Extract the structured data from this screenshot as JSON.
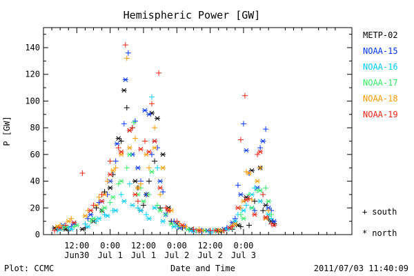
{
  "chart_data": {
    "type": "scatter",
    "title": "Hemispheric Power [GW]",
    "ylabel": "P [GW]",
    "xlabel": "Date and Time",
    "ylim": [
      0,
      155
    ],
    "xlim_hours": [
      -12,
      99
    ],
    "yticks": [
      "0",
      "20",
      "40",
      "60",
      "80",
      "100",
      "120",
      "140"
    ],
    "xticks": [
      {
        "top": "12:00",
        "bottom": "Jun30",
        "hour": 0
      },
      {
        "top": "0:00",
        "bottom": "Jul 1",
        "hour": 12
      },
      {
        "top": "12:00",
        "bottom": "Jul 1",
        "hour": 24
      },
      {
        "top": "0:00",
        "bottom": "Jul 2",
        "hour": 36
      },
      {
        "top": "12:00",
        "bottom": "Jul 2",
        "hour": 48
      },
      {
        "top": "0:00",
        "bottom": "Jul 3",
        "hour": 60
      }
    ],
    "grid": false,
    "legend_position": "right",
    "marker_legend": [
      {
        "symbol": "+",
        "label": "south"
      },
      {
        "symbol": "*",
        "label": "north"
      }
    ],
    "series": [
      {
        "name": "METP-02",
        "color": "#000000",
        "south": [
          [
            -7,
            4
          ],
          [
            -3,
            3
          ],
          [
            3,
            5
          ],
          [
            7,
            20
          ],
          [
            10,
            32
          ],
          [
            13,
            45
          ],
          [
            16,
            70
          ],
          [
            18,
            95
          ],
          [
            20,
            80
          ],
          [
            22,
            35
          ],
          [
            24,
            22
          ],
          [
            26,
            40
          ],
          [
            28,
            55
          ],
          [
            30,
            20
          ],
          [
            34,
            10
          ],
          [
            38,
            5
          ],
          [
            44,
            3
          ],
          [
            48,
            2
          ],
          [
            52,
            2
          ],
          [
            56,
            4
          ],
          [
            59,
            6
          ],
          [
            62,
            7
          ],
          [
            64,
            25
          ],
          [
            67,
            18
          ],
          [
            69,
            12
          ],
          [
            71,
            8
          ]
        ],
        "north": [
          [
            -8,
            5
          ],
          [
            -4,
            4
          ],
          [
            2,
            4
          ],
          [
            6,
            10
          ],
          [
            9,
            18
          ],
          [
            12,
            35
          ],
          [
            15,
            72
          ],
          [
            17,
            108
          ],
          [
            19,
            78
          ],
          [
            21,
            40
          ],
          [
            23,
            18
          ],
          [
            25,
            30
          ],
          [
            27,
            91
          ],
          [
            29,
            87
          ],
          [
            31,
            60
          ],
          [
            33,
            20
          ],
          [
            36,
            8
          ],
          [
            41,
            4
          ],
          [
            46,
            3
          ],
          [
            51,
            3
          ],
          [
            55,
            5
          ],
          [
            58,
            7
          ],
          [
            61,
            28
          ],
          [
            63,
            48
          ],
          [
            66,
            50
          ],
          [
            68,
            22
          ],
          [
            70,
            10
          ]
        ]
      },
      {
        "name": "NOAA-15",
        "color": "#0033ff",
        "south": [
          [
            -6,
            5
          ],
          [
            -2,
            6
          ],
          [
            4,
            12
          ],
          [
            8,
            24
          ],
          [
            11,
            30
          ],
          [
            14,
            55
          ],
          [
            17,
            83
          ],
          [
            18.5,
            136
          ],
          [
            21,
            85
          ],
          [
            23,
            40
          ],
          [
            25,
            30
          ],
          [
            27,
            60
          ],
          [
            29,
            65
          ],
          [
            31,
            32
          ],
          [
            35,
            10
          ],
          [
            39,
            6
          ],
          [
            45,
            3
          ],
          [
            50,
            3
          ],
          [
            54,
            5
          ],
          [
            57,
            12
          ],
          [
            58,
            37
          ],
          [
            60,
            83
          ],
          [
            62,
            46
          ],
          [
            64,
            18
          ],
          [
            66,
            65
          ],
          [
            68,
            79
          ],
          [
            70,
            18
          ]
        ],
        "north": [
          [
            -5,
            7
          ],
          [
            -1,
            8
          ],
          [
            5,
            15
          ],
          [
            9,
            25
          ],
          [
            12,
            40
          ],
          [
            14.5,
            68
          ],
          [
            17.5,
            116
          ],
          [
            20,
            60
          ],
          [
            22,
            50
          ],
          [
            24.5,
            93
          ],
          [
            26,
            90
          ],
          [
            28,
            70
          ],
          [
            30,
            40
          ],
          [
            32,
            15
          ],
          [
            37,
            5
          ],
          [
            42,
            3
          ],
          [
            47,
            3
          ],
          [
            53,
            4
          ],
          [
            56,
            9
          ],
          [
            59,
            30
          ],
          [
            61,
            63
          ],
          [
            63,
            20
          ],
          [
            65,
            35
          ],
          [
            67,
            70
          ],
          [
            69,
            20
          ],
          [
            71,
            10
          ]
        ]
      },
      {
        "name": "NOAA-16",
        "color": "#00ccff",
        "south": [
          [
            -7,
            3
          ],
          [
            -3,
            5
          ],
          [
            3,
            8
          ],
          [
            7,
            10
          ],
          [
            10,
            15
          ],
          [
            13,
            18
          ],
          [
            16,
            30
          ],
          [
            19,
            38
          ],
          [
            22,
            20
          ],
          [
            25,
            15
          ],
          [
            27,
            103
          ],
          [
            29,
            50
          ],
          [
            32,
            15
          ],
          [
            36,
            8
          ],
          [
            42,
            3
          ],
          [
            49,
            3
          ],
          [
            55,
            5
          ],
          [
            58,
            15
          ],
          [
            61,
            22
          ],
          [
            64,
            35
          ],
          [
            67,
            30
          ],
          [
            70,
            12
          ]
        ],
        "north": [
          [
            -6,
            4
          ],
          [
            -2,
            4
          ],
          [
            4,
            6
          ],
          [
            8,
            12
          ],
          [
            11,
            14
          ],
          [
            14,
            18
          ],
          [
            17,
            25
          ],
          [
            20,
            22
          ],
          [
            23,
            18
          ],
          [
            26,
            12
          ],
          [
            28,
            20
          ],
          [
            31,
            10
          ],
          [
            35,
            6
          ],
          [
            41,
            3
          ],
          [
            48,
            2
          ],
          [
            54,
            4
          ],
          [
            57,
            10
          ],
          [
            60,
            18
          ],
          [
            63,
            30
          ],
          [
            66,
            25
          ],
          [
            69,
            15
          ]
        ]
      },
      {
        "name": "NOAA-17",
        "color": "#33ee66",
        "south": [
          [
            -5,
            5
          ],
          [
            -1,
            6
          ],
          [
            5,
            10
          ],
          [
            9,
            18
          ],
          [
            12,
            24
          ],
          [
            15,
            38
          ],
          [
            18,
            50
          ],
          [
            20.5,
            84
          ],
          [
            23,
            35
          ],
          [
            26,
            30
          ],
          [
            29,
            22
          ],
          [
            32,
            15
          ],
          [
            37,
            6
          ],
          [
            43,
            3
          ],
          [
            50,
            3
          ],
          [
            56,
            5
          ],
          [
            59,
            15
          ],
          [
            62,
            30
          ],
          [
            65,
            33
          ],
          [
            68,
            35
          ],
          [
            70,
            15
          ]
        ],
        "north": [
          [
            -4,
            6
          ],
          [
            0,
            7
          ],
          [
            6,
            12
          ],
          [
            10,
            20
          ],
          [
            13,
            28
          ],
          [
            16,
            40
          ],
          [
            19,
            60
          ],
          [
            22,
            30
          ],
          [
            24,
            25
          ],
          [
            27,
            47
          ],
          [
            30,
            18
          ],
          [
            34,
            8
          ],
          [
            40,
            4
          ],
          [
            46,
            3
          ],
          [
            52,
            3
          ],
          [
            57,
            8
          ],
          [
            60,
            12
          ],
          [
            63,
            20
          ],
          [
            66,
            33
          ],
          [
            69,
            25
          ]
        ]
      },
      {
        "name": "NOAA-18",
        "color": "#ff9900",
        "south": [
          [
            -6,
            7
          ],
          [
            -2,
            12
          ],
          [
            4,
            18
          ],
          [
            8,
            28
          ],
          [
            11,
            40
          ],
          [
            14,
            50
          ],
          [
            18,
            132
          ],
          [
            21,
            72
          ],
          [
            23,
            38
          ],
          [
            26,
            50
          ],
          [
            28,
            80
          ],
          [
            30,
            30
          ],
          [
            33,
            18
          ],
          [
            37,
            8
          ],
          [
            44,
            4
          ],
          [
            51,
            3
          ],
          [
            56,
            7
          ],
          [
            59,
            20
          ],
          [
            61,
            47
          ],
          [
            63,
            26
          ],
          [
            66,
            50
          ],
          [
            69,
            18
          ]
        ],
        "north": [
          [
            -7,
            6
          ],
          [
            -3,
            10
          ],
          [
            3,
            14
          ],
          [
            7,
            22
          ],
          [
            10,
            30
          ],
          [
            13,
            48
          ],
          [
            16,
            60
          ],
          [
            19,
            65
          ],
          [
            22,
            35
          ],
          [
            25,
            60
          ],
          [
            28,
            65
          ],
          [
            31,
            50
          ],
          [
            34,
            18
          ],
          [
            39,
            6
          ],
          [
            45,
            3
          ],
          [
            52,
            3
          ],
          [
            57,
            8
          ],
          [
            60,
            25
          ],
          [
            62,
            46
          ],
          [
            65,
            40
          ],
          [
            68,
            12
          ]
        ]
      },
      {
        "name": "NOAA-19",
        "color": "#ee2211",
        "south": [
          [
            -8,
            3
          ],
          [
            -4,
            7
          ],
          [
            2,
            46
          ],
          [
            6,
            22
          ],
          [
            9,
            30
          ],
          [
            12,
            55
          ],
          [
            15,
            65
          ],
          [
            17.5,
            142
          ],
          [
            20,
            80
          ],
          [
            22,
            25
          ],
          [
            24.5,
            70
          ],
          [
            27,
            98
          ],
          [
            29.5,
            121
          ],
          [
            32,
            20
          ],
          [
            36,
            10
          ],
          [
            42,
            4
          ],
          [
            48,
            3
          ],
          [
            53,
            3
          ],
          [
            56,
            6
          ],
          [
            59,
            71
          ],
          [
            60.5,
            104
          ],
          [
            62,
            27
          ],
          [
            65,
            60
          ],
          [
            67,
            30
          ],
          [
            70,
            8
          ]
        ],
        "north": [
          [
            -6,
            5
          ],
          [
            -1,
            9
          ],
          [
            5,
            18
          ],
          [
            9,
            25
          ],
          [
            12,
            45
          ],
          [
            16,
            62
          ],
          [
            19,
            78
          ],
          [
            21,
            30
          ],
          [
            23,
            64
          ],
          [
            26,
            62
          ],
          [
            28,
            70
          ],
          [
            30,
            35
          ],
          [
            33,
            18
          ],
          [
            38,
            7
          ],
          [
            44,
            3
          ],
          [
            50,
            3
          ],
          [
            55,
            5
          ],
          [
            58,
            20
          ],
          [
            61,
            26
          ],
          [
            64,
            15
          ],
          [
            66,
            62
          ],
          [
            68,
            13
          ],
          [
            71,
            7
          ]
        ]
      }
    ]
  },
  "footer": {
    "left": "Plot: CCMC",
    "right": "2011/07/03 11:40:09"
  }
}
